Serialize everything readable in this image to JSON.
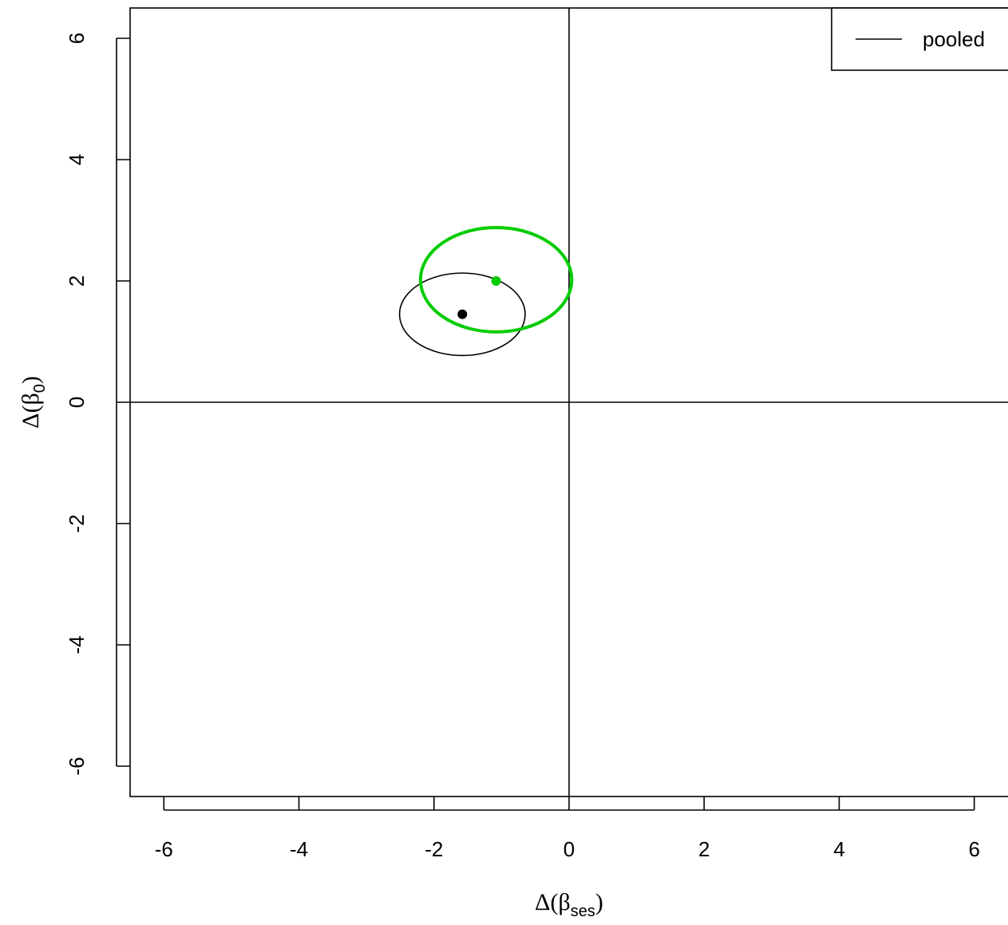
{
  "chart_data": {
    "type": "scatter",
    "xlabel": {
      "prefix": "Δ(β",
      "sub": "ses",
      "suffix": ")"
    },
    "ylabel": {
      "prefix": "Δ(β",
      "sub": "0",
      "suffix": ")"
    },
    "xlim": [
      -6.5,
      6.5
    ],
    "ylim": [
      -6.5,
      6.5
    ],
    "xticks": [
      -6,
      -4,
      -2,
      0,
      2,
      4,
      6
    ],
    "yticks": [
      -6,
      -4,
      -2,
      0,
      2,
      4,
      6
    ],
    "xtick_labels": [
      "-6",
      "-4",
      "-2",
      "0",
      "2",
      "4",
      "6"
    ],
    "ytick_labels": [
      "-6",
      "-4",
      "-2",
      "0",
      "2",
      "4",
      "6"
    ],
    "reference_lines": {
      "x": 0,
      "y": 0
    },
    "grid": false,
    "legend": {
      "position": "top-right",
      "entries": [
        "pooled"
      ]
    },
    "series": [
      {
        "name": "pooled",
        "color": "#000000",
        "point": {
          "x": -1.58,
          "y": 1.45
        },
        "ellipse": {
          "cx": -1.58,
          "cy": 1.45,
          "rx": 0.93,
          "ry": 0.68
        }
      },
      {
        "color": "#00CC00",
        "point": {
          "x": -1.08,
          "y": 2.0
        },
        "ellipse": {
          "cx": -1.08,
          "cy": 2.02,
          "rx": 1.12,
          "ry": 0.86
        }
      }
    ]
  }
}
